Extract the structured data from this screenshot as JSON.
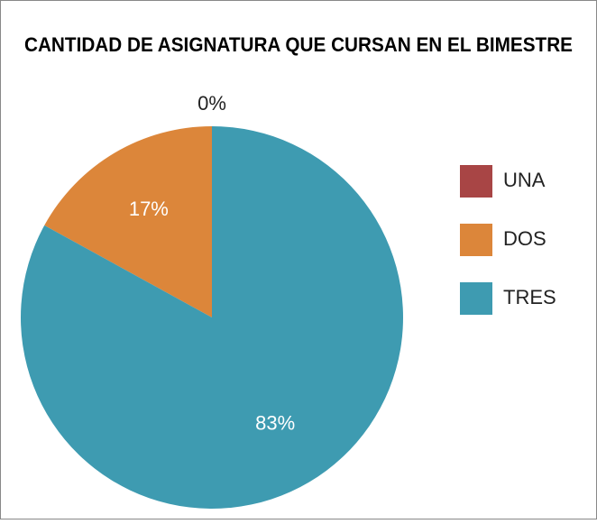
{
  "chart_data": {
    "type": "pie",
    "title": "CANTIDAD DE ASIGNATURA QUE CURSAN EN EL BIMESTRE",
    "categories": [
      "UNA",
      "DOS",
      "TRES"
    ],
    "values": [
      0,
      17,
      83
    ],
    "value_labels": [
      "0%",
      "17%",
      "83%"
    ],
    "colors": [
      "#a84545",
      "#dc863a",
      "#3e9bb1"
    ],
    "legend": "right"
  }
}
